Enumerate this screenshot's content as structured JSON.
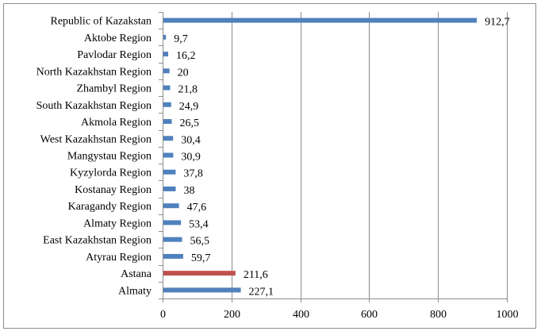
{
  "chart_data": {
    "type": "bar",
    "orientation": "horizontal",
    "categories": [
      "Republic of Kazakstan",
      "Aktobe Region",
      "Pavlodar Region",
      "North Kazakhstan Region",
      "Zhambyl Region",
      "South Kazakhstan Region",
      "Akmola Region",
      "West Kazakhstan Region",
      "Mangystau Region",
      "Kyzylorda Region",
      "Kostanay Region",
      "Karagandy Region",
      "Almaty Region",
      "East Kazakhstan Region",
      "Atyrau Region",
      "Astana",
      "Almaty"
    ],
    "values": [
      912.7,
      9.7,
      16.2,
      20,
      21.8,
      24.9,
      26.5,
      30.4,
      30.9,
      37.8,
      38,
      47.6,
      53.4,
      56.5,
      59.7,
      211.6,
      227.1
    ],
    "value_labels": [
      "912,7",
      "9,7",
      "16,2",
      "20",
      "21,8",
      "24,9",
      "26,5",
      "30,4",
      "30,9",
      "37,8",
      "38",
      "47,6",
      "53,4",
      "56,5",
      "59,7",
      "211,6",
      "227,1"
    ],
    "bar_colors": [
      "#4f81bd",
      "#4f81bd",
      "#4f81bd",
      "#4f81bd",
      "#4f81bd",
      "#4f81bd",
      "#4f81bd",
      "#4f81bd",
      "#4f81bd",
      "#4f81bd",
      "#4f81bd",
      "#4f81bd",
      "#4f81bd",
      "#4f81bd",
      "#4f81bd",
      "#c0504d",
      "#4f81bd"
    ],
    "xlim": [
      0,
      1000
    ],
    "xticks": [
      0,
      200,
      400,
      600,
      800,
      1000
    ],
    "xtick_labels": [
      "0",
      "200",
      "400",
      "600",
      "800",
      "1000"
    ],
    "grid": "vertical",
    "legend": "none",
    "gridline_color": "#8c8c8c",
    "axis_color": "#8c8c8c"
  }
}
